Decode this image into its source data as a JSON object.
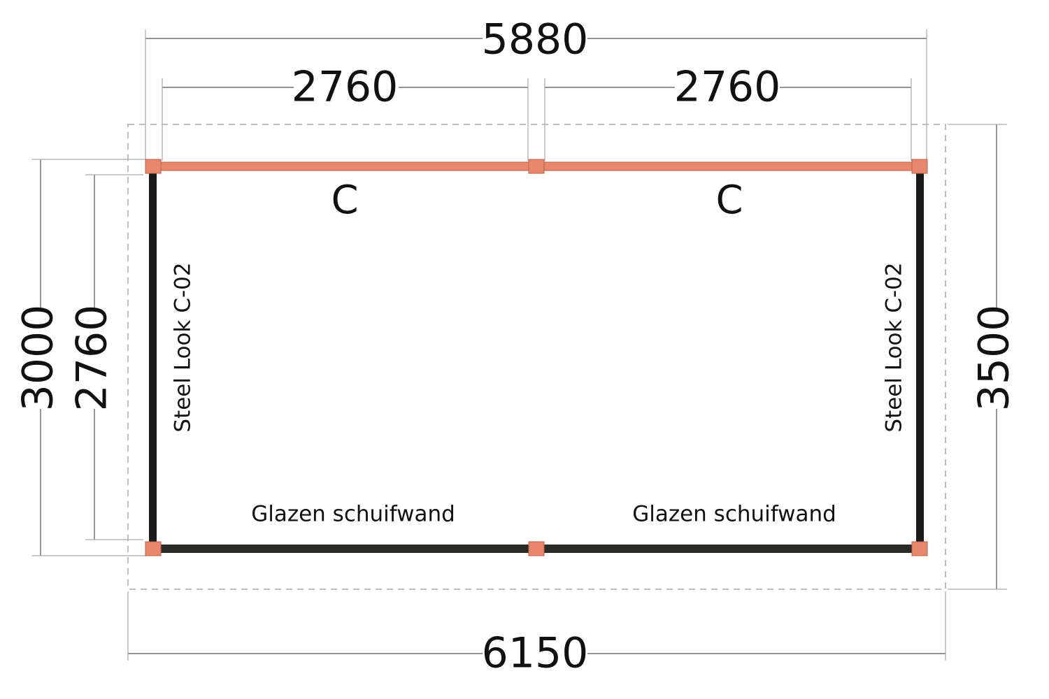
{
  "dimensions": {
    "top_total": "5880",
    "top_left": "2760",
    "top_right": "2760",
    "left_outer": "3000",
    "left_inner": "2760",
    "right": "3500",
    "bottom": "6150"
  },
  "walls": {
    "top_left": "C",
    "top_right": "C",
    "left": "Steel Look C-02",
    "right": "Steel Look C-02",
    "bottom_left": "Glazen schuifwand",
    "bottom_right": "Glazen schuifwand"
  }
}
